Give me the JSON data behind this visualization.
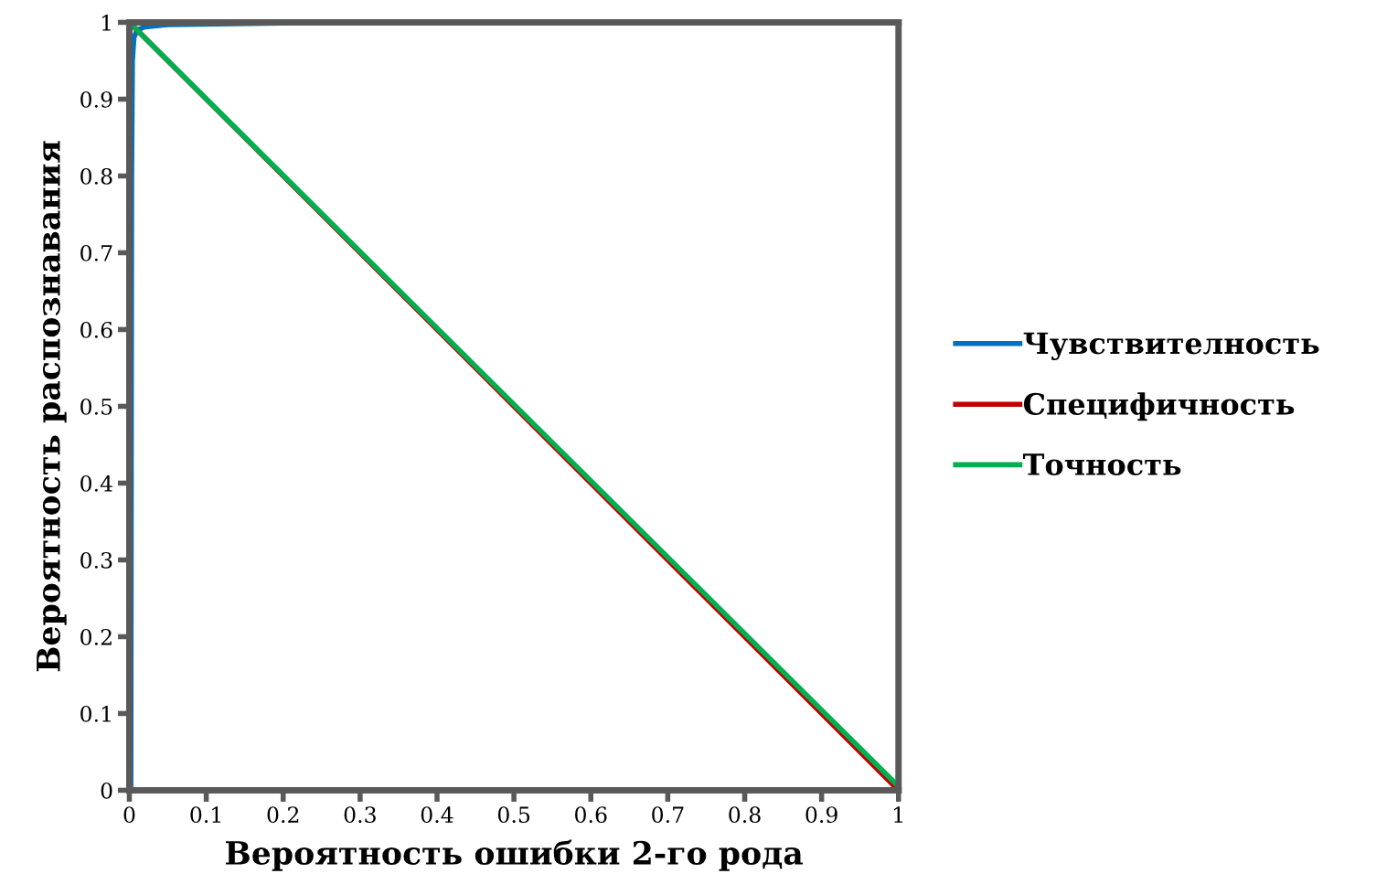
{
  "chart_data": {
    "type": "line",
    "xlabel": "Вероятность ошибки 2-го рода",
    "ylabel": "Вероятность распознавания",
    "xlim": [
      0,
      1
    ],
    "ylim": [
      0,
      1
    ],
    "xticks": [
      0,
      0.1,
      0.2,
      0.3,
      0.4,
      0.5,
      0.6,
      0.7,
      0.8,
      0.9,
      1
    ],
    "yticks": [
      0,
      0.1,
      0.2,
      0.3,
      0.4,
      0.5,
      0.6,
      0.7,
      0.8,
      0.9,
      1
    ],
    "grid": false,
    "legend": "right",
    "marker": "none",
    "line_style": "solid",
    "series": [
      {
        "name": "Чувствителность",
        "color": "#0070c0",
        "x": [
          0.002,
          0.003,
          0.004,
          0.006,
          0.01,
          0.02,
          0.05,
          0.2,
          0.5,
          1
        ],
        "values": [
          0,
          0.8,
          0.95,
          0.98,
          0.99,
          0.994,
          0.997,
          0.999,
          1,
          1
        ]
      },
      {
        "name": "Специфичность",
        "color": "#c00000",
        "x": [
          0,
          1
        ],
        "values": [
          1,
          0
        ]
      },
      {
        "name": "Точность",
        "color": "#00b050",
        "x": [
          0,
          1
        ],
        "values": [
          1,
          0.005
        ]
      }
    ]
  }
}
